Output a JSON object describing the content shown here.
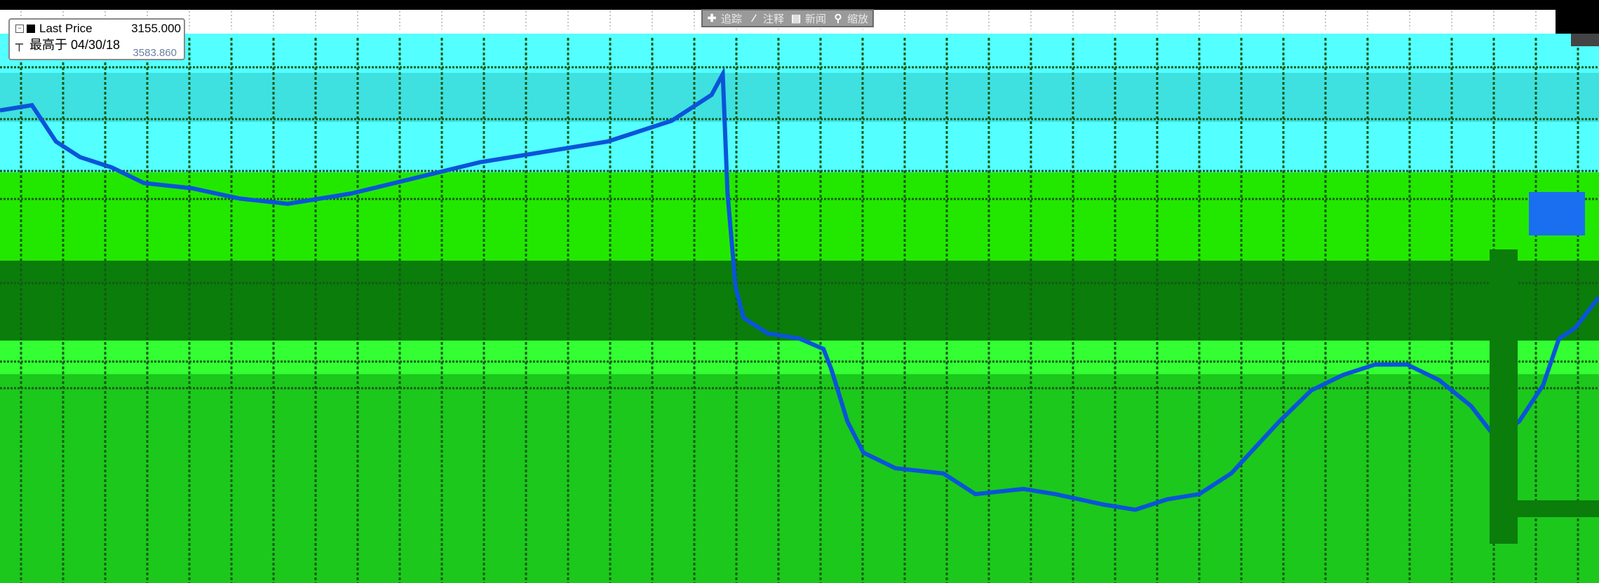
{
  "legend": {
    "series_label": "Last Price",
    "series_value": "3155.000",
    "high_label": "最高于 04/30/18",
    "high_value": "3583.860",
    "tee_glyph": "┬"
  },
  "toolbar": {
    "items": [
      {
        "icon": "✚",
        "label": "追踪"
      },
      {
        "icon": "∕",
        "label": "注释"
      },
      {
        "icon": "▤",
        "label": "新闻"
      },
      {
        "icon": "⚲",
        "label": "缩放"
      }
    ]
  },
  "colors": {
    "band_light_cyan": "#53ffff",
    "band_teal_cyan": "#3fe0e0",
    "band_cyan_dark": "#2ed0d0",
    "band_green_bright": "#22e800",
    "band_green_dark": "#0a7d0a",
    "band_green_mid": "#1cc81c",
    "band_green_light": "#33ff33",
    "grid_dark": "#145a14",
    "line_blue": "#0a54d8",
    "blue_block": "#1a6ff0",
    "legend_bg": "#ffffff",
    "toolbar_bg": "#9a9a9a"
  },
  "chart_data": {
    "type": "line",
    "series": [
      {
        "name": "Last Price",
        "points": [
          [
            0.0,
            0.86
          ],
          [
            0.02,
            0.87
          ],
          [
            0.035,
            0.8
          ],
          [
            0.05,
            0.77
          ],
          [
            0.07,
            0.75
          ],
          [
            0.09,
            0.72
          ],
          [
            0.12,
            0.71
          ],
          [
            0.15,
            0.69
          ],
          [
            0.18,
            0.68
          ],
          [
            0.22,
            0.7
          ],
          [
            0.26,
            0.73
          ],
          [
            0.3,
            0.76
          ],
          [
            0.34,
            0.78
          ],
          [
            0.38,
            0.8
          ],
          [
            0.42,
            0.84
          ],
          [
            0.445,
            0.89
          ],
          [
            0.452,
            0.93
          ],
          [
            0.455,
            0.7
          ],
          [
            0.46,
            0.52
          ],
          [
            0.465,
            0.46
          ],
          [
            0.48,
            0.43
          ],
          [
            0.5,
            0.42
          ],
          [
            0.515,
            0.4
          ],
          [
            0.52,
            0.36
          ],
          [
            0.53,
            0.26
          ],
          [
            0.54,
            0.2
          ],
          [
            0.56,
            0.17
          ],
          [
            0.59,
            0.16
          ],
          [
            0.61,
            0.12
          ],
          [
            0.64,
            0.13
          ],
          [
            0.66,
            0.12
          ],
          [
            0.69,
            0.1
          ],
          [
            0.71,
            0.09
          ],
          [
            0.73,
            0.11
          ],
          [
            0.75,
            0.12
          ],
          [
            0.77,
            0.16
          ],
          [
            0.8,
            0.26
          ],
          [
            0.82,
            0.32
          ],
          [
            0.84,
            0.35
          ],
          [
            0.86,
            0.37
          ],
          [
            0.88,
            0.37
          ],
          [
            0.9,
            0.34
          ],
          [
            0.92,
            0.29
          ],
          [
            0.935,
            0.23
          ],
          [
            0.95,
            0.26
          ],
          [
            0.965,
            0.33
          ],
          [
            0.975,
            0.42
          ],
          [
            0.985,
            0.44
          ],
          [
            1.0,
            0.5
          ]
        ]
      }
    ],
    "ylim": [
      0,
      1
    ],
    "grid": true
  }
}
